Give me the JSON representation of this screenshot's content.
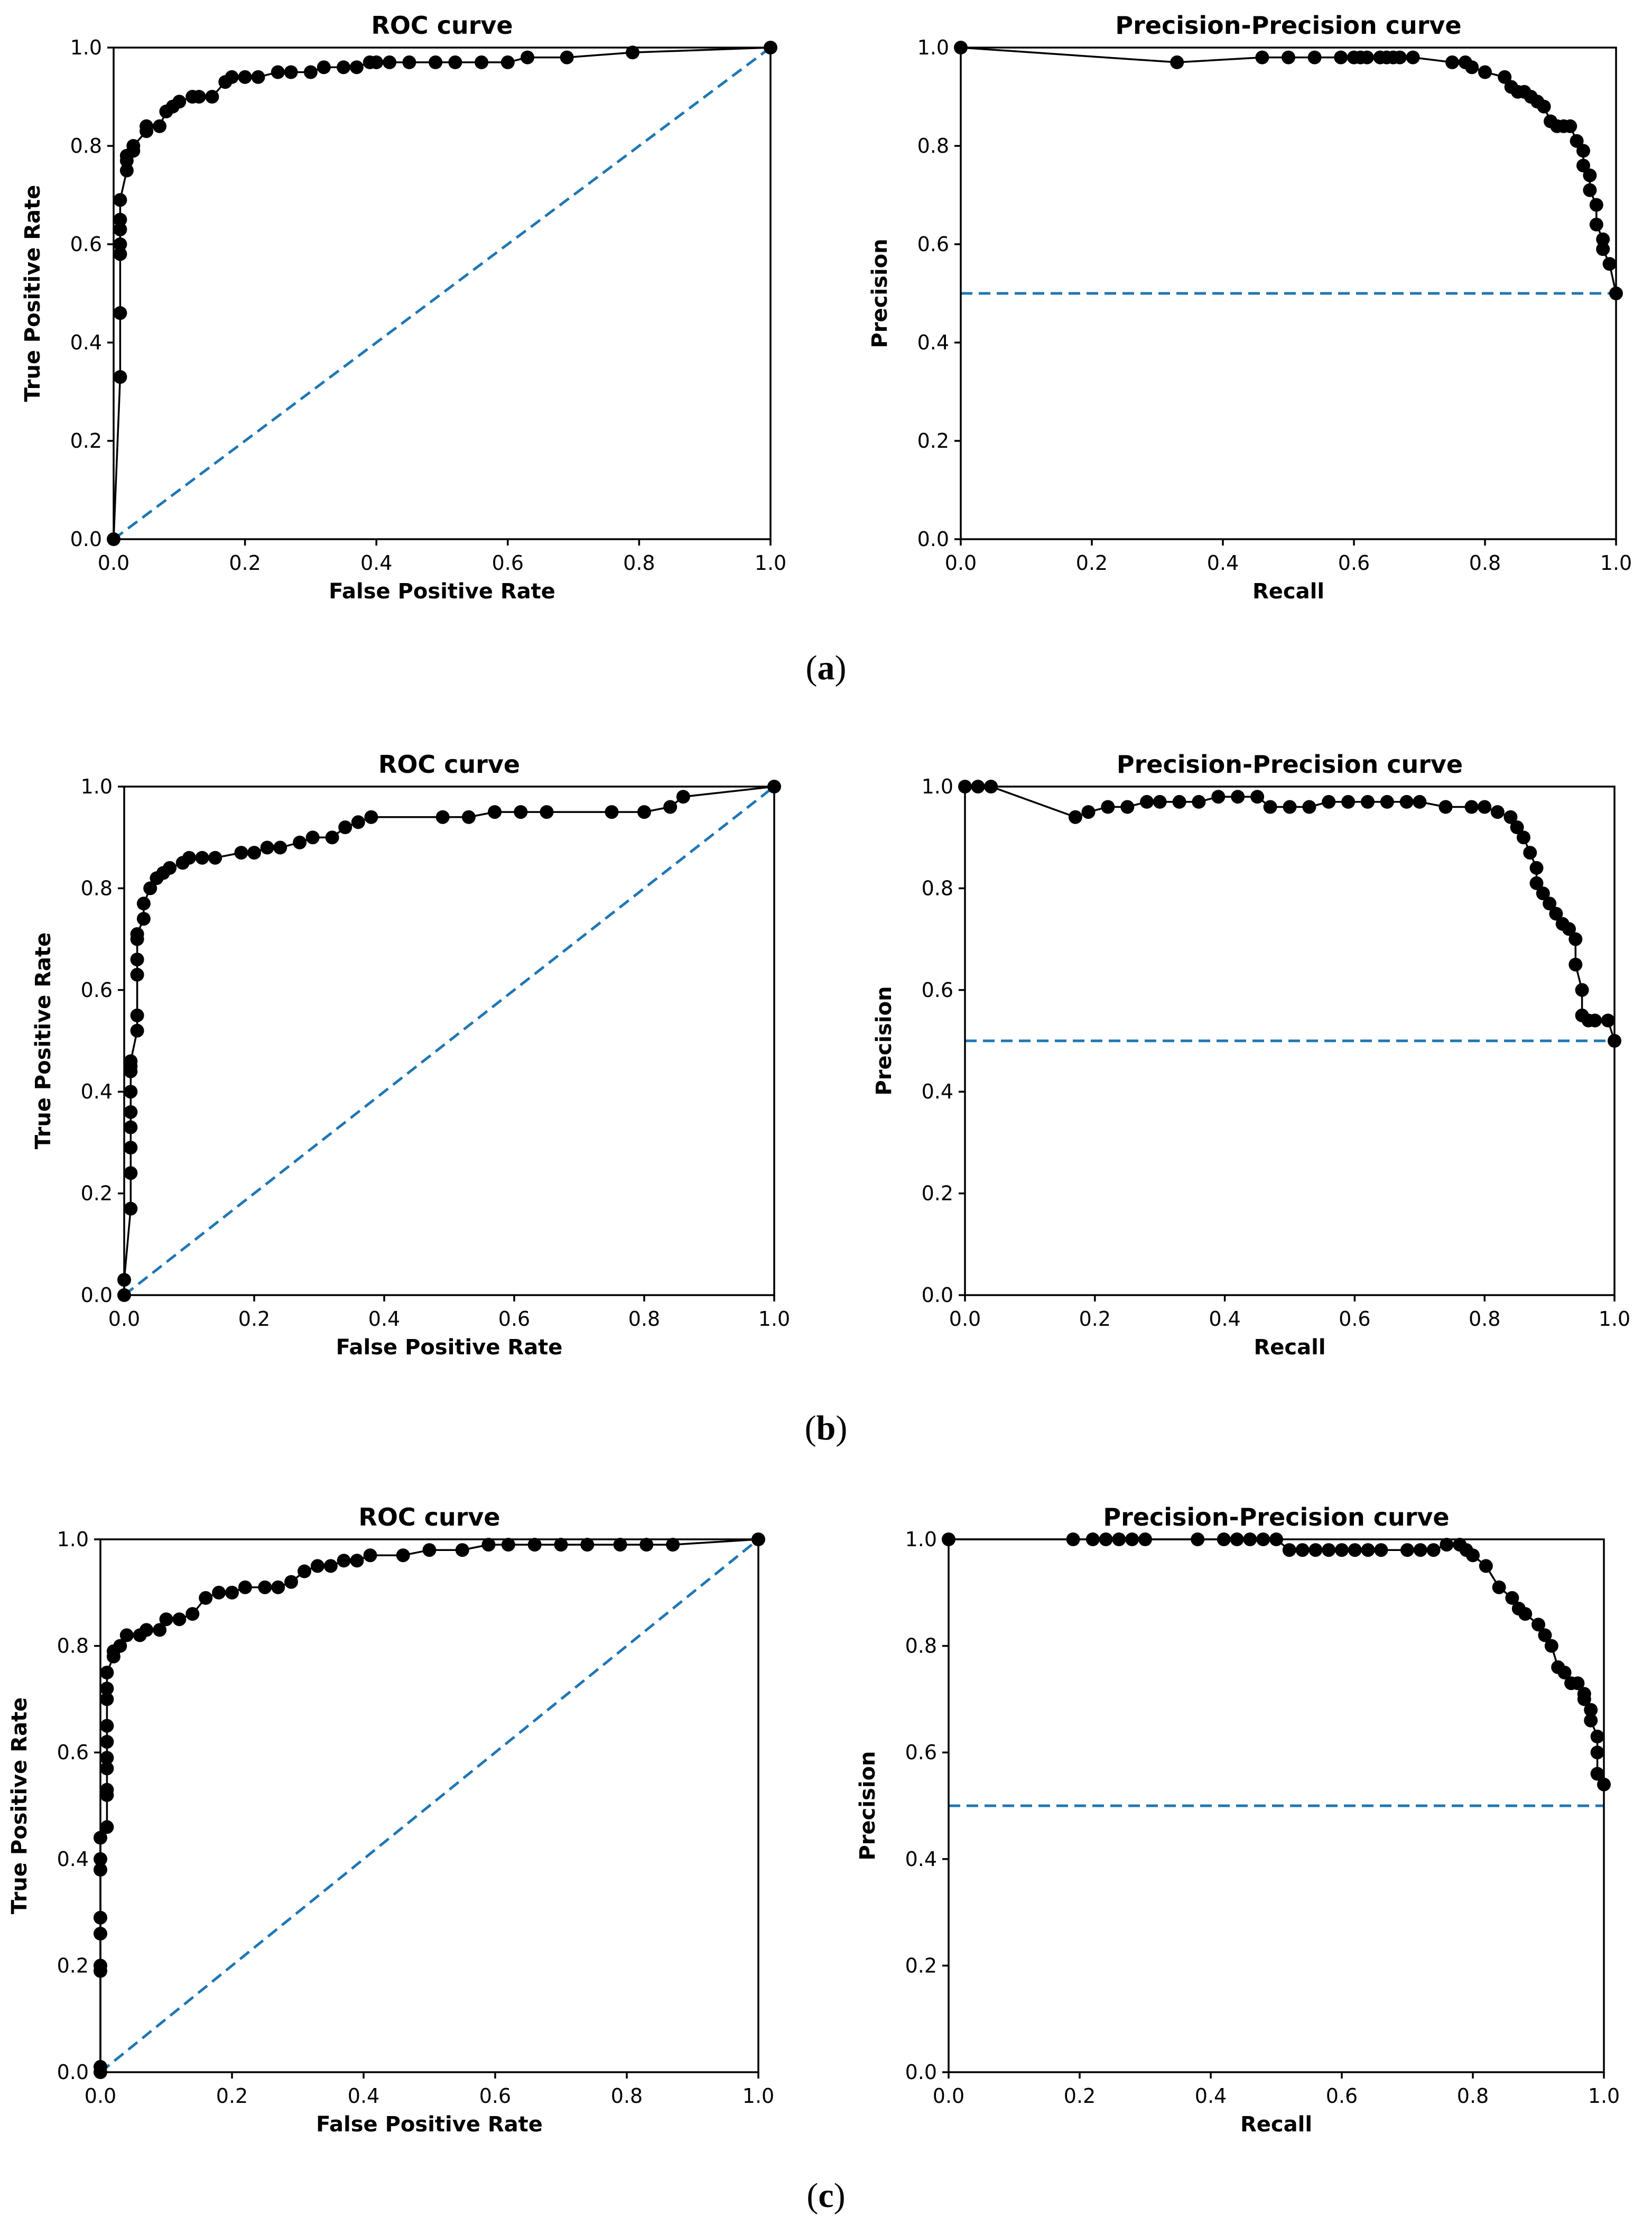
{
  "colors": {
    "curve": "#000000",
    "marker": "#000000",
    "baseline": "#1f77b4"
  },
  "panels": [
    {
      "label_open": "(",
      "label_letter": "a",
      "label_close": ")"
    },
    {
      "label_open": "(",
      "label_letter": "b",
      "label_close": ")"
    },
    {
      "label_open": "(",
      "label_letter": "c",
      "label_close": ")"
    }
  ],
  "chart_data": [
    {
      "panel": "a",
      "type": "line",
      "title": "ROC curve",
      "xlabel": "False Positive Rate",
      "ylabel": "True Positive Rate",
      "xlim": [
        0,
        1
      ],
      "ylim": [
        0,
        1
      ],
      "xticks": [
        "0.0",
        "0.2",
        "0.4",
        "0.6",
        "0.8",
        "1.0"
      ],
      "yticks": [
        "0.0",
        "0.2",
        "0.4",
        "0.6",
        "0.8",
        "1.0"
      ],
      "baseline": {
        "style": "dashed",
        "x": [
          0,
          1
        ],
        "y": [
          0,
          1
        ]
      },
      "x": [
        0,
        0.01,
        0.01,
        0.01,
        0.01,
        0.01,
        0.01,
        0.01,
        0.02,
        0.02,
        0.02,
        0.03,
        0.03,
        0.05,
        0.05,
        0.07,
        0.08,
        0.09,
        0.1,
        0.12,
        0.13,
        0.15,
        0.17,
        0.18,
        0.2,
        0.22,
        0.25,
        0.27,
        0.3,
        0.32,
        0.35,
        0.37,
        0.39,
        0.4,
        0.42,
        0.45,
        0.49,
        0.52,
        0.56,
        0.6,
        0.63,
        0.69,
        0.79,
        1.0
      ],
      "y": [
        0,
        0.33,
        0.46,
        0.58,
        0.6,
        0.63,
        0.65,
        0.69,
        0.75,
        0.77,
        0.78,
        0.79,
        0.8,
        0.83,
        0.84,
        0.84,
        0.87,
        0.88,
        0.89,
        0.9,
        0.9,
        0.9,
        0.93,
        0.94,
        0.94,
        0.94,
        0.95,
        0.95,
        0.95,
        0.96,
        0.96,
        0.96,
        0.97,
        0.97,
        0.97,
        0.97,
        0.97,
        0.97,
        0.97,
        0.97,
        0.98,
        0.98,
        0.99,
        1.0
      ]
    },
    {
      "panel": "a",
      "type": "line",
      "title": "Precision-Precision curve",
      "xlabel": "Recall",
      "ylabel": "Precision",
      "xlim": [
        0,
        1
      ],
      "ylim": [
        0,
        1
      ],
      "xticks": [
        "0.0",
        "0.2",
        "0.4",
        "0.6",
        "0.8",
        "1.0"
      ],
      "yticks": [
        "0.0",
        "0.2",
        "0.4",
        "0.6",
        "0.8",
        "1.0"
      ],
      "baseline": {
        "style": "dashed",
        "x": [
          0,
          1
        ],
        "y": [
          0.5,
          0.5
        ]
      },
      "x": [
        0,
        0.33,
        0.46,
        0.5,
        0.54,
        0.58,
        0.6,
        0.61,
        0.62,
        0.64,
        0.65,
        0.66,
        0.67,
        0.69,
        0.75,
        0.77,
        0.78,
        0.8,
        0.83,
        0.84,
        0.85,
        0.86,
        0.87,
        0.88,
        0.89,
        0.9,
        0.91,
        0.92,
        0.93,
        0.94,
        0.95,
        0.95,
        0.96,
        0.96,
        0.97,
        0.97,
        0.98,
        0.98,
        0.99,
        1.0
      ],
      "y": [
        1.0,
        0.97,
        0.98,
        0.98,
        0.98,
        0.98,
        0.98,
        0.98,
        0.98,
        0.98,
        0.98,
        0.98,
        0.98,
        0.98,
        0.97,
        0.97,
        0.96,
        0.95,
        0.94,
        0.92,
        0.91,
        0.91,
        0.9,
        0.89,
        0.88,
        0.85,
        0.84,
        0.84,
        0.84,
        0.81,
        0.79,
        0.76,
        0.74,
        0.71,
        0.68,
        0.64,
        0.61,
        0.59,
        0.56,
        0.5
      ]
    },
    {
      "panel": "b",
      "type": "line",
      "title": "ROC curve",
      "xlabel": "False Positive Rate",
      "ylabel": "True Positive Rate",
      "xlim": [
        0,
        1
      ],
      "ylim": [
        0,
        1
      ],
      "xticks": [
        "0.0",
        "0.2",
        "0.4",
        "0.6",
        "0.8",
        "1.0"
      ],
      "yticks": [
        "0.0",
        "0.2",
        "0.4",
        "0.6",
        "0.8",
        "1.0"
      ],
      "baseline": {
        "style": "dashed",
        "x": [
          0,
          1
        ],
        "y": [
          0,
          1
        ]
      },
      "x": [
        0,
        0.0,
        0.01,
        0.01,
        0.01,
        0.01,
        0.01,
        0.01,
        0.01,
        0.01,
        0.01,
        0.02,
        0.02,
        0.02,
        0.02,
        0.02,
        0.02,
        0.03,
        0.03,
        0.04,
        0.05,
        0.06,
        0.07,
        0.09,
        0.1,
        0.12,
        0.14,
        0.18,
        0.2,
        0.22,
        0.24,
        0.27,
        0.29,
        0.32,
        0.34,
        0.36,
        0.38,
        0.49,
        0.53,
        0.57,
        0.61,
        0.65,
        0.75,
        0.8,
        0.84,
        0.86,
        1.0
      ],
      "y": [
        0,
        0.03,
        0.17,
        0.24,
        0.29,
        0.33,
        0.36,
        0.4,
        0.44,
        0.45,
        0.46,
        0.52,
        0.55,
        0.63,
        0.66,
        0.7,
        0.71,
        0.74,
        0.77,
        0.8,
        0.82,
        0.83,
        0.84,
        0.85,
        0.86,
        0.86,
        0.86,
        0.87,
        0.87,
        0.88,
        0.88,
        0.89,
        0.9,
        0.9,
        0.92,
        0.93,
        0.94,
        0.94,
        0.94,
        0.95,
        0.95,
        0.95,
        0.95,
        0.95,
        0.96,
        0.98,
        1.0
      ]
    },
    {
      "panel": "b",
      "type": "line",
      "title": "Precision-Precision curve",
      "xlabel": "Recall",
      "ylabel": "Precision",
      "xlim": [
        0,
        1
      ],
      "ylim": [
        0,
        1
      ],
      "xticks": [
        "0.0",
        "0.2",
        "0.4",
        "0.6",
        "0.8",
        "1.0"
      ],
      "yticks": [
        "0.0",
        "0.2",
        "0.4",
        "0.6",
        "0.8",
        "1.0"
      ],
      "baseline": {
        "style": "dashed",
        "x": [
          0,
          1
        ],
        "y": [
          0.5,
          0.5
        ]
      },
      "x": [
        0,
        0.02,
        0.04,
        0.17,
        0.19,
        0.22,
        0.25,
        0.28,
        0.3,
        0.33,
        0.36,
        0.39,
        0.42,
        0.45,
        0.47,
        0.5,
        0.53,
        0.56,
        0.59,
        0.62,
        0.65,
        0.68,
        0.7,
        0.74,
        0.78,
        0.8,
        0.82,
        0.84,
        0.85,
        0.86,
        0.87,
        0.88,
        0.88,
        0.89,
        0.9,
        0.91,
        0.92,
        0.93,
        0.94,
        0.94,
        0.95,
        0.95,
        0.96,
        0.97,
        0.99,
        1.0
      ],
      "y": [
        1.0,
        1.0,
        1.0,
        0.94,
        0.95,
        0.96,
        0.96,
        0.97,
        0.97,
        0.97,
        0.97,
        0.98,
        0.98,
        0.98,
        0.96,
        0.96,
        0.96,
        0.97,
        0.97,
        0.97,
        0.97,
        0.97,
        0.97,
        0.96,
        0.96,
        0.96,
        0.95,
        0.94,
        0.92,
        0.9,
        0.87,
        0.84,
        0.81,
        0.79,
        0.77,
        0.75,
        0.73,
        0.72,
        0.7,
        0.65,
        0.6,
        0.55,
        0.54,
        0.54,
        0.54,
        0.5
      ]
    },
    {
      "panel": "c",
      "type": "line",
      "title": "ROC curve",
      "xlabel": "False Positive Rate",
      "ylabel": "True Positive Rate",
      "xlim": [
        0,
        1
      ],
      "ylim": [
        0,
        1
      ],
      "xticks": [
        "0.0",
        "0.2",
        "0.4",
        "0.6",
        "0.8",
        "1.0"
      ],
      "yticks": [
        "0.0",
        "0.2",
        "0.4",
        "0.6",
        "0.8",
        "1.0"
      ],
      "baseline": {
        "style": "dashed",
        "x": [
          0,
          1
        ],
        "y": [
          0,
          1
        ]
      },
      "x": [
        0,
        0.0,
        0.0,
        0.0,
        0.0,
        0.0,
        0.0,
        0.0,
        0.0,
        0.01,
        0.01,
        0.01,
        0.01,
        0.01,
        0.01,
        0.01,
        0.01,
        0.01,
        0.01,
        0.02,
        0.02,
        0.03,
        0.04,
        0.06,
        0.07,
        0.09,
        0.1,
        0.12,
        0.14,
        0.16,
        0.18,
        0.2,
        0.22,
        0.25,
        0.27,
        0.29,
        0.31,
        0.33,
        0.35,
        0.37,
        0.39,
        0.41,
        0.46,
        0.5,
        0.55,
        0.59,
        0.62,
        0.66,
        0.7,
        0.74,
        0.79,
        0.83,
        0.87,
        1.0
      ],
      "y": [
        0,
        0.01,
        0.19,
        0.2,
        0.26,
        0.29,
        0.38,
        0.4,
        0.44,
        0.46,
        0.52,
        0.53,
        0.57,
        0.59,
        0.62,
        0.65,
        0.7,
        0.72,
        0.75,
        0.78,
        0.79,
        0.8,
        0.82,
        0.82,
        0.83,
        0.83,
        0.85,
        0.85,
        0.86,
        0.89,
        0.9,
        0.9,
        0.91,
        0.91,
        0.91,
        0.92,
        0.94,
        0.95,
        0.95,
        0.96,
        0.96,
        0.97,
        0.97,
        0.98,
        0.98,
        0.99,
        0.99,
        0.99,
        0.99,
        0.99,
        0.99,
        0.99,
        0.99,
        1.0
      ]
    },
    {
      "panel": "c",
      "type": "line",
      "title": "Precision-Precision curve",
      "xlabel": "Recall",
      "ylabel": "Precision",
      "xlim": [
        0,
        1
      ],
      "ylim": [
        0,
        1
      ],
      "xticks": [
        "0.0",
        "0.2",
        "0.4",
        "0.6",
        "0.8",
        "1.0"
      ],
      "yticks": [
        "0.0",
        "0.2",
        "0.4",
        "0.6",
        "0.8",
        "1.0"
      ],
      "baseline": {
        "style": "dashed",
        "x": [
          0,
          1
        ],
        "y": [
          0.5,
          0.5
        ]
      },
      "x": [
        0,
        0.19,
        0.22,
        0.24,
        0.26,
        0.28,
        0.3,
        0.38,
        0.42,
        0.44,
        0.46,
        0.48,
        0.5,
        0.52,
        0.54,
        0.56,
        0.58,
        0.6,
        0.62,
        0.64,
        0.66,
        0.7,
        0.72,
        0.74,
        0.76,
        0.78,
        0.79,
        0.8,
        0.82,
        0.84,
        0.86,
        0.87,
        0.88,
        0.9,
        0.91,
        0.92,
        0.93,
        0.94,
        0.95,
        0.96,
        0.97,
        0.97,
        0.98,
        0.98,
        0.99,
        0.99,
        0.99,
        1.0
      ],
      "y": [
        1.0,
        1.0,
        1.0,
        1.0,
        1.0,
        1.0,
        1.0,
        1.0,
        1.0,
        1.0,
        1.0,
        1.0,
        1.0,
        0.98,
        0.98,
        0.98,
        0.98,
        0.98,
        0.98,
        0.98,
        0.98,
        0.98,
        0.98,
        0.98,
        0.99,
        0.99,
        0.98,
        0.97,
        0.95,
        0.91,
        0.89,
        0.87,
        0.86,
        0.84,
        0.82,
        0.8,
        0.76,
        0.75,
        0.73,
        0.73,
        0.71,
        0.7,
        0.68,
        0.66,
        0.63,
        0.6,
        0.56,
        0.54
      ]
    }
  ]
}
